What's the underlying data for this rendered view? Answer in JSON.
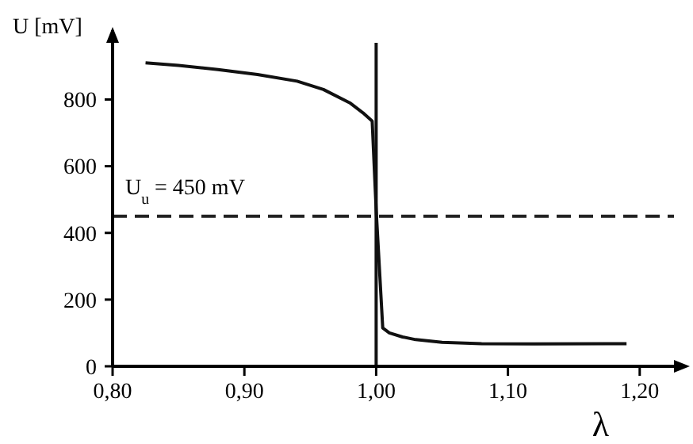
{
  "chart_data": {
    "type": "line",
    "xlabel": "λ",
    "ylabel": "U [mV]",
    "xlim": [
      0.8,
      1.226
    ],
    "ylim": [
      0,
      970
    ],
    "xticks": [
      {
        "value": 0.8,
        "label": "0,80"
      },
      {
        "value": 0.9,
        "label": "0,90"
      },
      {
        "value": 1.0,
        "label": "1,00"
      },
      {
        "value": 1.1,
        "label": "1,10"
      },
      {
        "value": 1.2,
        "label": "1,20"
      }
    ],
    "yticks": [
      0,
      200,
      400,
      600,
      800
    ],
    "grid": false,
    "marker": "none",
    "line_style": "solid",
    "series": [
      {
        "color": "#111111",
        "x": [
          0.825,
          0.85,
          0.88,
          0.91,
          0.94,
          0.96,
          0.98,
          0.99,
          0.997,
          1.0,
          1.005,
          1.01,
          1.02,
          1.03,
          1.05,
          1.08,
          1.12,
          1.19
        ],
        "values": [
          910,
          902,
          890,
          875,
          855,
          830,
          790,
          760,
          735,
          470,
          115,
          100,
          88,
          80,
          72,
          68,
          67,
          68
        ]
      }
    ],
    "ref_lines": [
      {
        "axis": "y",
        "value": 450,
        "label": "U$_{u}$ = 450 mV",
        "line_style": "dashed",
        "color": "#222222"
      },
      {
        "axis": "x",
        "value": 1.0,
        "label": null,
        "line_style": "solid",
        "color": "#111111"
      }
    ]
  }
}
